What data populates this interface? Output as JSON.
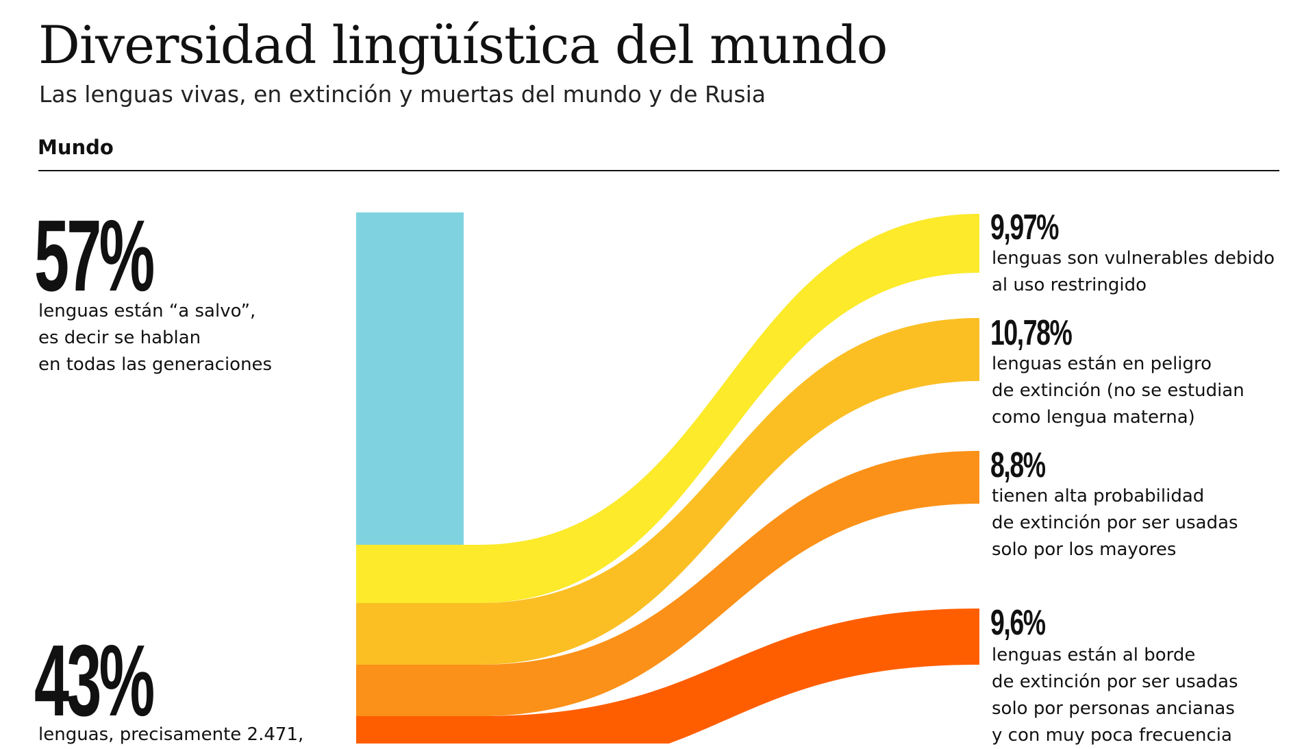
{
  "header": {
    "title": "Diversidad lingüística del mundo",
    "subtitle": "Las lenguas vivas, en extinción y muertas del mundo y de Rusia",
    "section": "Mundo"
  },
  "safe": {
    "percent": "57%",
    "desc_lines": [
      "lenguas están “a salvo”,",
      "es decir se hablan",
      "en todas las generaciones"
    ]
  },
  "risk": {
    "percent": "43%",
    "desc_lines": [
      "lenguas, precisamente 2.471,"
    ]
  },
  "categories": [
    {
      "percent": "9,97%",
      "desc_lines": [
        "lenguas son vulnerables debido",
        "al uso restringido"
      ],
      "color": "#FCEA2B"
    },
    {
      "percent": "10,78%",
      "desc_lines": [
        "lenguas están en peligro",
        "de extinción (no se estudian",
        "como lengua materna)"
      ],
      "color": "#FBBF24"
    },
    {
      "percent": "8,8%",
      "desc_lines": [
        "tienen alta probabilidad",
        "de extinción por ser usadas",
        "solo por los mayores"
      ],
      "color": "#FB9118"
    },
    {
      "percent": "9,6%",
      "desc_lines": [
        "lenguas están al borde",
        "de extinción por ser usadas",
        "solo por personas ancianas",
        "y con muy poca frecuencia"
      ],
      "color": "#FF5E00"
    }
  ],
  "colors": {
    "safe_bar": "#7FD3E0"
  }
}
